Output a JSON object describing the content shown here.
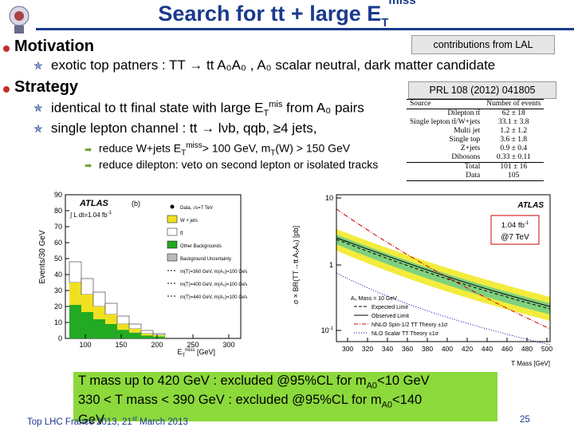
{
  "title": {
    "main": "Search for tt",
    "plus": " + large E",
    "sup": "mis",
    "sub": "T",
    "s": "s"
  },
  "motivation": {
    "heading": "Motivation",
    "box": "contributions from LAL",
    "line": "exotic top patners  : TT → tt A₀A₀ , A₀ scalar neutral, dark matter candidate"
  },
  "strategy": {
    "heading": "Strategy",
    "box": "PRL 108 (2012) 041805",
    "line1": "identical to tt final state with large E",
    "line1_sup": "mis",
    "line1_sub": "T",
    "line1_end": "  from A₀ pairs",
    "line2": "single lepton channel : tt → lνb, qqb, ≥4 jets,",
    "sub1": "reduce W+jets E",
    "sub1_sup": "miss",
    "sub1_sub": "T",
    "sub1_end": "> 100 GeV, m",
    "sub1_sub2": "T",
    "sub1_end2": "(W) > 150 GeV",
    "sub2": "reduce dilepton: veto on second lepton or isolated tracks"
  },
  "yields_table": {
    "headers": [
      "Source",
      "Number of events"
    ],
    "rows": [
      [
        "Dilepton tt̄",
        "62 ± 18"
      ],
      [
        "Single lepton tt̄/W+jets",
        "33.1 ± 3.8"
      ],
      [
        "Multi jet",
        "1.2 ± 1.2"
      ],
      [
        "Single top",
        "3.6 ± 1.8"
      ],
      [
        "Z+jets",
        "0.9 ± 0.4"
      ],
      [
        "Dibosons",
        "0.33 ± 0.11"
      ]
    ],
    "total": [
      "Total",
      "101 ± 16"
    ],
    "data": [
      "Data",
      "105"
    ]
  },
  "left_plot": {
    "ylabel": "Events/30 GeV",
    "xlabel": "E",
    "xlabel_sup": "miss",
    "xlabel_sub": "T",
    "xlabel_unit": " [GeV]",
    "atlas": "ATLAS",
    "panel": "(b)",
    "lumi": "∫ L dt=1.04 fb",
    "lumi_sup": "-1",
    "yticks": [
      "0",
      "10",
      "20",
      "30",
      "40",
      "50",
      "60",
      "70",
      "80",
      "90"
    ],
    "xticks": [
      "100",
      "150",
      "200",
      "250",
      "300"
    ],
    "legend": [
      {
        "label": "Data, √s=7 TeV",
        "color": "#000000",
        "kind": "dot"
      },
      {
        "label": "W + jets",
        "color": "#f0e020",
        "kind": "box"
      },
      {
        "label": "tt̄",
        "color": "#ffffff",
        "kind": "box"
      },
      {
        "label": "Other Backgrounds",
        "color": "#22aa22",
        "kind": "box"
      },
      {
        "label": "Background Uncertainty",
        "color": "#bbbbbb",
        "kind": "hatch"
      },
      {
        "label": "m(T)=360 GeV, m(A₀)=100 GeV",
        "color": "#000000",
        "kind": "dash"
      },
      {
        "label": "m(T)=400 GeV, m(A₀)=100 GeV",
        "color": "#000000",
        "kind": "dash"
      },
      {
        "label": "m(T)=440 GeV, m(A₀)=100 GeV",
        "color": "#000000",
        "kind": "dash"
      }
    ]
  },
  "right_plot": {
    "ylabel": "σ × BR(TT→tt A₀A₀) [pb]",
    "xlabel": "T Mass [GeV]",
    "atlas": "ATLAS",
    "lumi_note": "1.04 fb",
    "lumi_note_sup": "-1",
    "energy_note": "@7 TeV",
    "yticks": [
      "10",
      "1",
      "10"
    ],
    "yticks_sup": [
      "",
      "",
      "-1"
    ],
    "xticks": [
      "300",
      "320",
      "340",
      "360",
      "380",
      "400",
      "420",
      "440",
      "460",
      "480",
      "500"
    ],
    "legend": [
      {
        "label": "A₀ Mass = 10 GeV",
        "kind": "text"
      },
      {
        "label": "Expected Limit",
        "kind": "dash"
      },
      {
        "label": "Observed Limit",
        "kind": "solid"
      },
      {
        "label": "NNLO Spin-1/2 TT Theory ±1σ",
        "kind": "dashdot"
      },
      {
        "label": "NLO Scalar TT Theory ±1σ",
        "kind": "dot"
      }
    ]
  },
  "conclusion": {
    "line1_a": "T mass up to 420 GeV : excluded @95%CL for m",
    "line1_sub": "A0",
    "line1_b": "<10 GeV",
    "line2_a": "330 < T mass < 390 GeV : excluded @95%CL for m",
    "line2_sub": "A0",
    "line2_b": "<140",
    "line3": "GeV"
  },
  "footer": {
    "left": "Top LHC France 2013, 21",
    "left_sup": "st",
    "left_end": " March 2013",
    "page": "25"
  },
  "colors": {
    "title": "#1a3a8c",
    "bullet": "#c0302a",
    "highlight": "#8cd93c",
    "band_green": "#7fd07f",
    "band_yellow": "#f3ec3c"
  }
}
